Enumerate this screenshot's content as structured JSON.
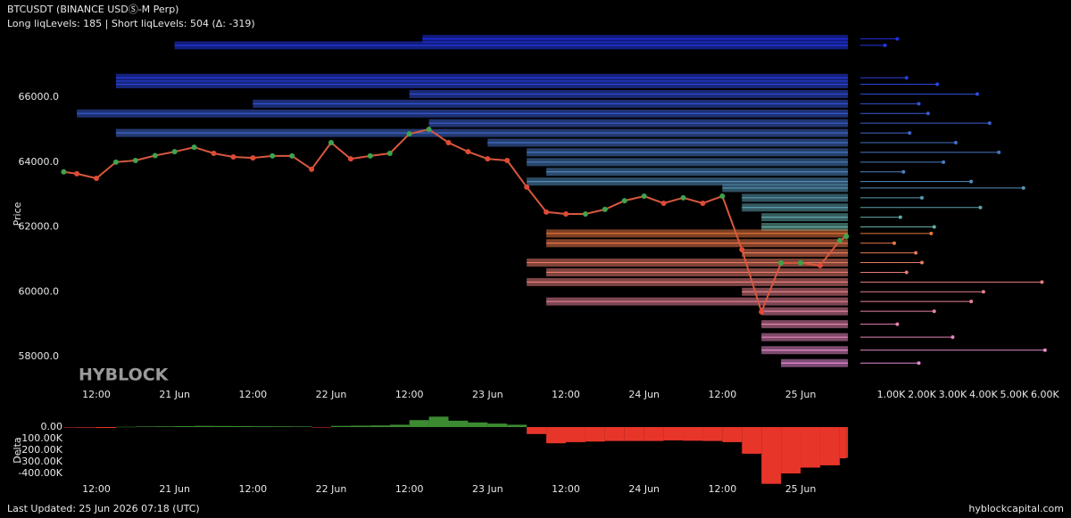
{
  "header": {
    "title": "BTCUSDT (BINANCE USDⓈ-M Perp)",
    "subtitle": "Long liqLevels: 185 | Short liqLevels: 504 (Δ: -319)"
  },
  "watermark": "HYBLOCK",
  "footer": {
    "updated": "Last Updated: 25 Jun 2026 07:18 (UTC)",
    "site": "hyblockcapital.com"
  },
  "chart_data": [
    {
      "type": "line",
      "ylabel": "Price",
      "color": "#d8583e",
      "up_color": "#3fa34d",
      "down_color": "#e04a35",
      "x": [
        "20 Jun 07:00",
        "20 Jun 09:00",
        "20 Jun 12:00",
        "20 Jun 15:00",
        "20 Jun 18:00",
        "20 Jun 21:00",
        "21 Jun 00:00",
        "21 Jun 03:00",
        "21 Jun 06:00",
        "21 Jun 09:00",
        "21 Jun 12:00",
        "21 Jun 15:00",
        "21 Jun 18:00",
        "21 Jun 21:00",
        "22 Jun 00:00",
        "22 Jun 03:00",
        "22 Jun 06:00",
        "22 Jun 09:00",
        "22 Jun 12:00",
        "22 Jun 15:00",
        "22 Jun 18:00",
        "22 Jun 21:00",
        "23 Jun 00:00",
        "23 Jun 03:00",
        "23 Jun 06:00",
        "23 Jun 09:00",
        "23 Jun 12:00",
        "23 Jun 15:00",
        "23 Jun 18:00",
        "23 Jun 21:00",
        "24 Jun 00:00",
        "24 Jun 03:00",
        "24 Jun 06:00",
        "24 Jun 09:00",
        "24 Jun 12:00",
        "24 Jun 15:00",
        "24 Jun 18:00",
        "24 Jun 21:00",
        "25 Jun 00:00",
        "25 Jun 03:00",
        "25 Jun 06:00",
        "25 Jun 07:00"
      ],
      "values": [
        63700,
        63640,
        63500,
        64000,
        64050,
        64200,
        64320,
        64460,
        64270,
        64160,
        64130,
        64190,
        64190,
        63780,
        64600,
        64100,
        64190,
        64270,
        64870,
        65010,
        64600,
        64320,
        64100,
        64050,
        63230,
        62460,
        62400,
        62400,
        62540,
        62810,
        62950,
        62730,
        62900,
        62730,
        62950,
        61300,
        59380,
        60890,
        60890,
        60810,
        61580,
        61710
      ],
      "xlim": [
        "20 Jun 06:48",
        "25 Jun 07:15"
      ],
      "xticks": [
        {
          "value": "20 Jun 12:00",
          "label": "12:00"
        },
        {
          "value": "21 Jun 00:00",
          "label": "21 Jun"
        },
        {
          "value": "21 Jun 12:00",
          "label": "12:00"
        },
        {
          "value": "22 Jun 00:00",
          "label": "22 Jun"
        },
        {
          "value": "22 Jun 12:00",
          "label": "12:00"
        },
        {
          "value": "23 Jun 00:00",
          "label": "23 Jun"
        },
        {
          "value": "23 Jun 12:00",
          "label": "12:00"
        },
        {
          "value": "24 Jun 00:00",
          "label": "24 Jun"
        },
        {
          "value": "24 Jun 12:00",
          "label": "12:00"
        },
        {
          "value": "25 Jun 00:00",
          "label": "25 Jun"
        }
      ],
      "ylim": [
        56900,
        67900
      ],
      "yticks": [
        {
          "value": 58000,
          "label": "58000.0"
        },
        {
          "value": 60000,
          "label": "60000.0"
        },
        {
          "value": 62000,
          "label": "62000.0"
        },
        {
          "value": 64000,
          "label": "64000.0"
        },
        {
          "value": 66000,
          "label": "66000.0"
        }
      ],
      "short_levels": {
        "colors": [
          "#1f2fe6",
          "#66b0a8"
        ],
        "prices": [
          67800,
          67600,
          66600,
          66400,
          66100,
          65800,
          65500,
          65200,
          64900,
          64600,
          64300,
          64000,
          63700,
          63400,
          63200,
          62900,
          62600,
          62300,
          62000
        ],
        "starts": [
          "22 Jun 14:00",
          "21 Jun 00:00",
          "20 Jun 15:00",
          "20 Jun 15:00",
          "22 Jun 12:00",
          "21 Jun 12:00",
          "20 Jun 09:00",
          "22 Jun 15:00",
          "20 Jun 15:00",
          "23 Jun 00:00",
          "23 Jun 06:00",
          "23 Jun 06:00",
          "23 Jun 09:00",
          "23 Jun 06:00",
          "24 Jun 12:00",
          "24 Jun 15:00",
          "24 Jun 15:00",
          "24 Jun 18:00",
          "24 Jun 18:00"
        ],
        "sizes": [
          1200,
          800,
          1500,
          2500,
          3800,
          1900,
          2200,
          4200,
          1600,
          3100,
          4500,
          2700,
          1400,
          3600,
          5300,
          2000,
          3900,
          1300,
          2400
        ]
      },
      "long_levels": {
        "colors": [
          "#e8743e",
          "#e48bd6"
        ],
        "prices": [
          61800,
          61500,
          61200,
          60900,
          60600,
          60300,
          60000,
          59700,
          59400,
          59000,
          58600,
          58200,
          57800
        ],
        "starts": [
          "23 Jun 09:00",
          "23 Jun 09:00",
          "24 Jun 15:00",
          "23 Jun 06:00",
          "23 Jun 09:00",
          "23 Jun 06:00",
          "24 Jun 15:00",
          "23 Jun 09:00",
          "24 Jun 18:00",
          "24 Jun 18:00",
          "24 Jun 18:00",
          "24 Jun 18:00",
          "24 Jun 21:00"
        ],
        "sizes": [
          2300,
          1100,
          1800,
          2000,
          1500,
          5900,
          4000,
          3600,
          2400,
          1200,
          3000,
          6000,
          1900
        ]
      }
    },
    {
      "type": "hbar",
      "xlim": [
        0,
        6700
      ],
      "xticks": [
        {
          "value": 1000,
          "label": "1.00K"
        },
        {
          "value": 2000,
          "label": "2.00K"
        },
        {
          "value": 3000,
          "label": "3.00K"
        },
        {
          "value": 4000,
          "label": "4.00K"
        },
        {
          "value": 5000,
          "label": "5.00K"
        },
        {
          "value": 6000,
          "label": "6.00K"
        }
      ]
    },
    {
      "type": "bar",
      "ylabel": "Delta",
      "positive_color": "#3c8a32",
      "negative_color": "#e8352a",
      "x": [
        "20 Jun 07:00",
        "20 Jun 09:00",
        "20 Jun 12:00",
        "20 Jun 15:00",
        "20 Jun 18:00",
        "20 Jun 21:00",
        "21 Jun 00:00",
        "21 Jun 03:00",
        "21 Jun 06:00",
        "21 Jun 09:00",
        "21 Jun 12:00",
        "21 Jun 15:00",
        "21 Jun 18:00",
        "21 Jun 21:00",
        "22 Jun 00:00",
        "22 Jun 03:00",
        "22 Jun 06:00",
        "22 Jun 09:00",
        "22 Jun 12:00",
        "22 Jun 15:00",
        "22 Jun 18:00",
        "22 Jun 21:00",
        "23 Jun 00:00",
        "23 Jun 03:00",
        "23 Jun 06:00",
        "23 Jun 09:00",
        "23 Jun 12:00",
        "23 Jun 15:00",
        "23 Jun 18:00",
        "23 Jun 21:00",
        "24 Jun 00:00",
        "24 Jun 03:00",
        "24 Jun 06:00",
        "24 Jun 09:00",
        "24 Jun 12:00",
        "24 Jun 15:00",
        "24 Jun 18:00",
        "24 Jun 21:00",
        "25 Jun 00:00",
        "25 Jun 03:00",
        "25 Jun 06:00",
        "25 Jun 07:00"
      ],
      "values": [
        -3000,
        -5000,
        -8000,
        2000,
        5000,
        6000,
        8000,
        10000,
        9000,
        8000,
        7000,
        6000,
        5000,
        -4000,
        10000,
        12000,
        14000,
        20000,
        60000,
        90000,
        55000,
        40000,
        30000,
        20000,
        -60000,
        -140000,
        -130000,
        -125000,
        -120000,
        -120000,
        -120000,
        -115000,
        -118000,
        -120000,
        -130000,
        -230000,
        -490000,
        -400000,
        -350000,
        -330000,
        -270000,
        -265000
      ],
      "xlim": [
        "20 Jun 06:48",
        "25 Jun 07:15"
      ],
      "xticks": [
        {
          "value": "20 Jun 12:00",
          "label": "12:00"
        },
        {
          "value": "21 Jun 00:00",
          "label": "21 Jun"
        },
        {
          "value": "21 Jun 12:00",
          "label": "12:00"
        },
        {
          "value": "22 Jun 00:00",
          "label": "22 Jun"
        },
        {
          "value": "22 Jun 12:00",
          "label": "12:00"
        },
        {
          "value": "23 Jun 00:00",
          "label": "23 Jun"
        },
        {
          "value": "23 Jun 12:00",
          "label": "12:00"
        },
        {
          "value": "24 Jun 00:00",
          "label": "24 Jun"
        },
        {
          "value": "24 Jun 12:00",
          "label": "12:00"
        },
        {
          "value": "25 Jun 00:00",
          "label": "25 Jun"
        }
      ],
      "ylim": [
        -500000,
        100000
      ],
      "yticks": [
        {
          "value": 0,
          "label": "0.00"
        },
        {
          "value": -100000,
          "label": "-100.00K"
        },
        {
          "value": -200000,
          "label": "-200.00K"
        },
        {
          "value": -300000,
          "label": "-300.00K"
        },
        {
          "value": -400000,
          "label": "-400.00K"
        }
      ]
    }
  ]
}
